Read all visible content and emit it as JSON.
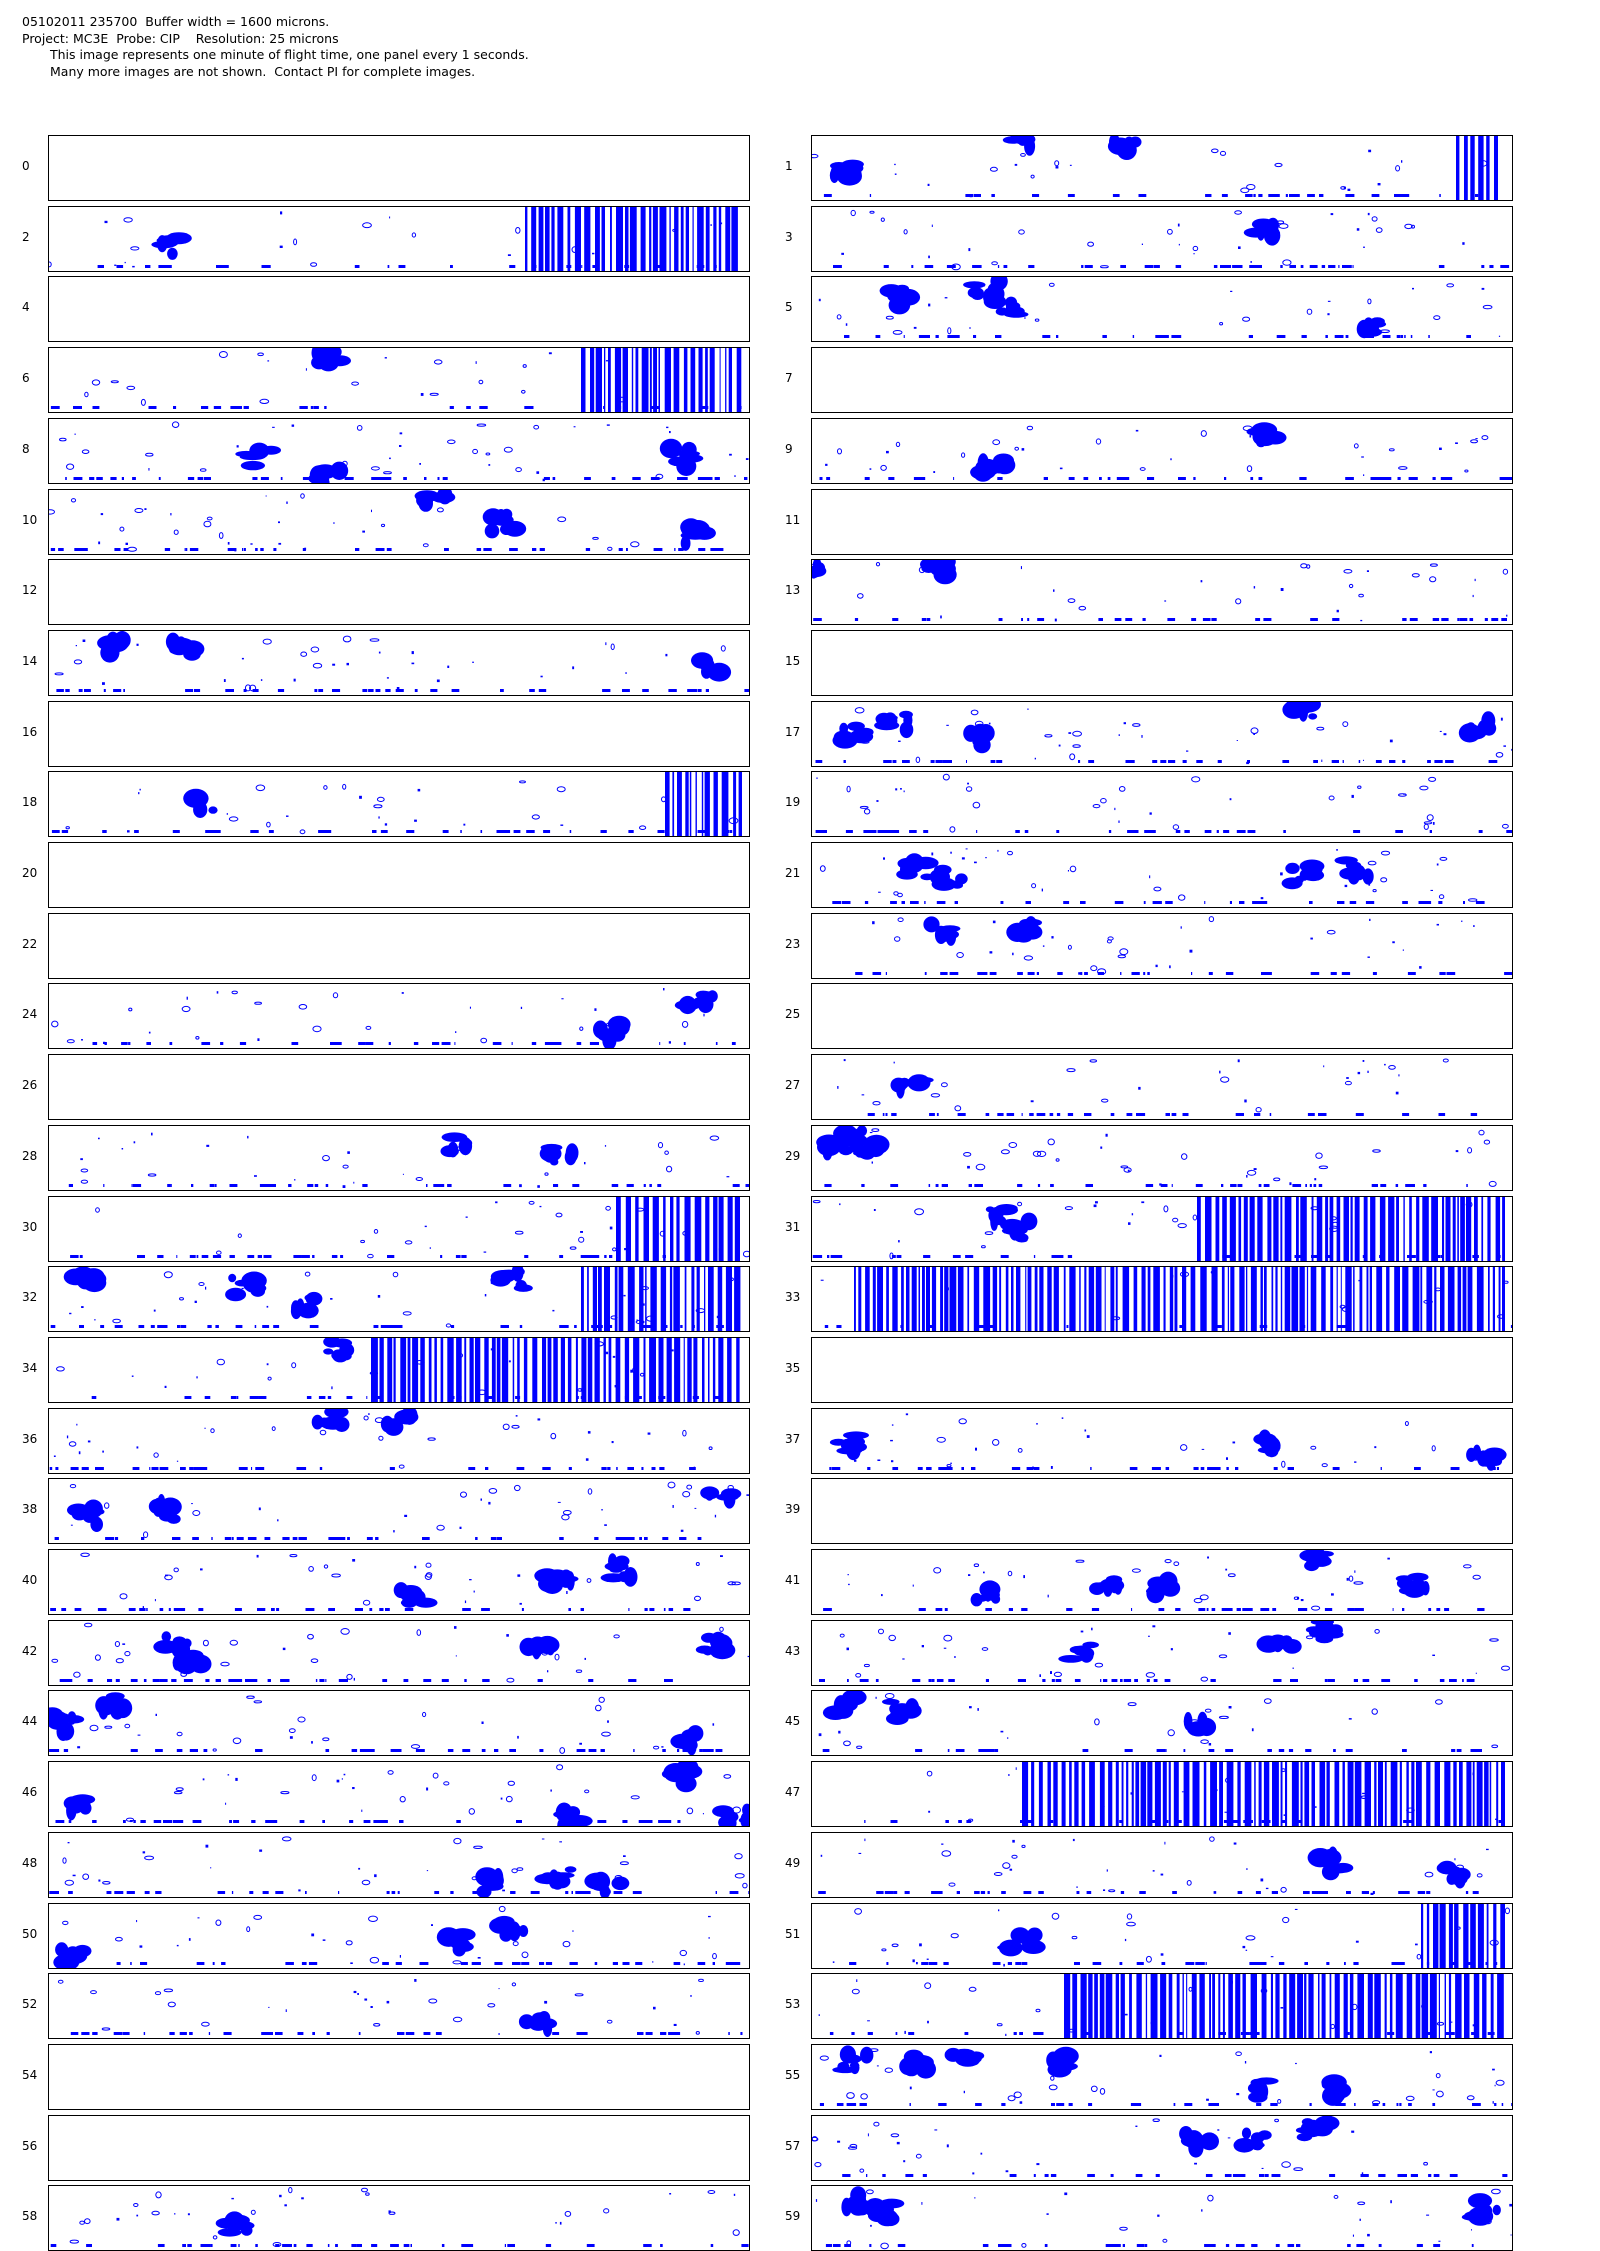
{
  "header": {
    "line1": "05102011 235700  Buffer width = 1600 microns.",
    "line2": "Project: MC3E  Probe: CIP    Resolution: 25 microns",
    "line3": "This image represents one minute of flight time, one panel every 1 seconds.",
    "line4": "Many more images are not shown.  Contact PI for complete images."
  },
  "colors": {
    "particle": "#0000ff",
    "border": "#000000",
    "background": "#ffffff"
  },
  "panels": [
    {
      "label": "0",
      "density": 0,
      "blocks": [],
      "stripes": []
    },
    {
      "label": "1",
      "density": 26,
      "blocks": [
        [
          0.05,
          0.55
        ],
        [
          0.3,
          0.05
        ],
        [
          0.45,
          0.1
        ]
      ],
      "stripes": [
        [
          0.92,
          0.98
        ]
      ]
    },
    {
      "label": "2",
      "density": 22,
      "blocks": [
        [
          0.18,
          0.6
        ]
      ],
      "stripes": [
        [
          0.68,
          0.99
        ]
      ]
    },
    {
      "label": "3",
      "density": 34,
      "blocks": [
        [
          0.65,
          0.4
        ]
      ],
      "stripes": []
    },
    {
      "label": "4",
      "density": 0,
      "blocks": [],
      "stripes": []
    },
    {
      "label": "5",
      "density": 30,
      "blocks": [
        [
          0.12,
          0.3
        ],
        [
          0.25,
          0.2
        ],
        [
          0.28,
          0.5
        ],
        [
          0.8,
          0.75
        ]
      ],
      "stripes": []
    },
    {
      "label": "6",
      "density": 24,
      "blocks": [
        [
          0.4,
          0.15
        ]
      ],
      "stripes": [
        [
          0.76,
          0.99
        ]
      ]
    },
    {
      "label": "7",
      "density": 0,
      "blocks": [],
      "stripes": []
    },
    {
      "label": "8",
      "density": 38,
      "blocks": [
        [
          0.3,
          0.6
        ],
        [
          0.9,
          0.6
        ],
        [
          0.4,
          0.9
        ]
      ],
      "stripes": []
    },
    {
      "label": "9",
      "density": 32,
      "blocks": [
        [
          0.26,
          0.75
        ],
        [
          0.65,
          0.3
        ]
      ],
      "stripes": []
    },
    {
      "label": "10",
      "density": 38,
      "blocks": [
        [
          0.55,
          0.2
        ],
        [
          0.65,
          0.5
        ],
        [
          0.92,
          0.7
        ]
      ],
      "stripes": []
    },
    {
      "label": "11",
      "density": 0,
      "blocks": [],
      "stripes": []
    },
    {
      "label": "12",
      "density": 0,
      "blocks": [],
      "stripes": []
    },
    {
      "label": "13",
      "density": 30,
      "blocks": [
        [
          0.01,
          0.1
        ],
        [
          0.18,
          0.15
        ]
      ],
      "stripes": []
    },
    {
      "label": "14",
      "density": 36,
      "blocks": [
        [
          0.1,
          0.2
        ],
        [
          0.19,
          0.25
        ],
        [
          0.95,
          0.6
        ]
      ],
      "stripes": []
    },
    {
      "label": "15",
      "density": 0,
      "blocks": [],
      "stripes": []
    },
    {
      "label": "16",
      "density": 0,
      "blocks": [],
      "stripes": []
    },
    {
      "label": "17",
      "density": 36,
      "blocks": [
        [
          0.06,
          0.5
        ],
        [
          0.12,
          0.3
        ],
        [
          0.23,
          0.55
        ],
        [
          0.7,
          0.15
        ],
        [
          0.95,
          0.4
        ]
      ],
      "stripes": []
    },
    {
      "label": "18",
      "density": 30,
      "blocks": [
        [
          0.22,
          0.5
        ]
      ],
      "stripes": [
        [
          0.88,
          0.99
        ]
      ]
    },
    {
      "label": "19",
      "density": 34,
      "blocks": [],
      "stripes": []
    },
    {
      "label": "20",
      "density": 0,
      "blocks": [],
      "stripes": []
    },
    {
      "label": "21",
      "density": 34,
      "blocks": [
        [
          0.15,
          0.4
        ],
        [
          0.2,
          0.55
        ],
        [
          0.7,
          0.5
        ],
        [
          0.78,
          0.4
        ]
      ],
      "stripes": []
    },
    {
      "label": "22",
      "density": 0,
      "blocks": [],
      "stripes": []
    },
    {
      "label": "23",
      "density": 34,
      "blocks": [
        [
          0.18,
          0.3
        ],
        [
          0.3,
          0.25
        ]
      ],
      "stripes": []
    },
    {
      "label": "24",
      "density": 30,
      "blocks": [
        [
          0.93,
          0.25
        ],
        [
          0.8,
          0.75
        ]
      ],
      "stripes": []
    },
    {
      "label": "25",
      "density": 0,
      "blocks": [],
      "stripes": []
    },
    {
      "label": "26",
      "density": 0,
      "blocks": [],
      "stripes": []
    },
    {
      "label": "27",
      "density": 30,
      "blocks": [
        [
          0.14,
          0.5
        ]
      ],
      "stripes": []
    },
    {
      "label": "28",
      "density": 30,
      "blocks": [
        [
          0.73,
          0.45
        ],
        [
          0.58,
          0.3
        ]
      ],
      "stripes": []
    },
    {
      "label": "29",
      "density": 34,
      "blocks": [
        [
          0.03,
          0.35
        ],
        [
          0.06,
          0.15
        ],
        [
          0.08,
          0.3
        ]
      ],
      "stripes": []
    },
    {
      "label": "30",
      "density": 28,
      "blocks": [],
      "stripes": [
        [
          0.81,
          0.99
        ]
      ]
    },
    {
      "label": "31",
      "density": 28,
      "blocks": [
        [
          0.27,
          0.3
        ],
        [
          0.3,
          0.5
        ]
      ],
      "stripes": [
        [
          0.55,
          0.99
        ]
      ]
    },
    {
      "label": "32",
      "density": 36,
      "blocks": [
        [
          0.05,
          0.15
        ],
        [
          0.28,
          0.3
        ],
        [
          0.37,
          0.6
        ],
        [
          0.66,
          0.2
        ]
      ],
      "stripes": [
        [
          0.76,
          0.99
        ]
      ]
    },
    {
      "label": "33",
      "density": 14,
      "blocks": [],
      "stripes": [
        [
          0.06,
          0.99
        ]
      ]
    },
    {
      "label": "34",
      "density": 26,
      "blocks": [
        [
          0.41,
          0.2
        ]
      ],
      "stripes": [
        [
          0.46,
          0.99
        ]
      ]
    },
    {
      "label": "35",
      "density": 0,
      "blocks": [],
      "stripes": []
    },
    {
      "label": "36",
      "density": 32,
      "blocks": [
        [
          0.4,
          0.15
        ],
        [
          0.5,
          0.2
        ]
      ],
      "stripes": []
    },
    {
      "label": "37",
      "density": 32,
      "blocks": [
        [
          0.05,
          0.55
        ],
        [
          0.66,
          0.55
        ],
        [
          0.96,
          0.75
        ]
      ],
      "stripes": []
    },
    {
      "label": "38",
      "density": 34,
      "blocks": [
        [
          0.05,
          0.6
        ],
        [
          0.16,
          0.5
        ],
        [
          0.96,
          0.2
        ]
      ],
      "stripes": []
    },
    {
      "label": "39",
      "density": 0,
      "blocks": [],
      "stripes": []
    },
    {
      "label": "40",
      "density": 34,
      "blocks": [
        [
          0.52,
          0.7
        ],
        [
          0.73,
          0.5
        ],
        [
          0.82,
          0.3
        ]
      ],
      "stripes": []
    },
    {
      "label": "41",
      "density": 34,
      "blocks": [
        [
          0.25,
          0.7
        ],
        [
          0.42,
          0.6
        ],
        [
          0.5,
          0.6
        ],
        [
          0.72,
          0.15
        ],
        [
          0.86,
          0.55
        ]
      ],
      "stripes": []
    },
    {
      "label": "42",
      "density": 34,
      "blocks": [
        [
          0.18,
          0.3
        ],
        [
          0.2,
          0.65
        ],
        [
          0.7,
          0.5
        ],
        [
          0.95,
          0.35
        ]
      ],
      "stripes": []
    },
    {
      "label": "43",
      "density": 34,
      "blocks": [
        [
          0.38,
          0.5
        ],
        [
          0.67,
          0.3
        ],
        [
          0.73,
          0.15
        ]
      ],
      "stripes": []
    },
    {
      "label": "44",
      "density": 32,
      "blocks": [
        [
          0.02,
          0.5
        ],
        [
          0.09,
          0.2
        ],
        [
          0.91,
          0.75
        ]
      ],
      "stripes": []
    },
    {
      "label": "45",
      "density": 28,
      "blocks": [
        [
          0.05,
          0.2
        ],
        [
          0.13,
          0.3
        ],
        [
          0.55,
          0.5
        ]
      ],
      "stripes": []
    },
    {
      "label": "46",
      "density": 34,
      "blocks": [
        [
          0.05,
          0.7
        ],
        [
          0.74,
          0.9
        ],
        [
          0.9,
          0.2
        ],
        [
          0.98,
          0.85
        ]
      ],
      "stripes": []
    },
    {
      "label": "47",
      "density": 22,
      "blocks": [],
      "stripes": [
        [
          0.3,
          0.99
        ]
      ]
    },
    {
      "label": "48",
      "density": 34,
      "blocks": [
        [
          0.63,
          0.8
        ],
        [
          0.73,
          0.7
        ],
        [
          0.8,
          0.8
        ]
      ],
      "stripes": []
    },
    {
      "label": "49",
      "density": 34,
      "blocks": [
        [
          0.74,
          0.5
        ],
        [
          0.92,
          0.65
        ]
      ],
      "stripes": []
    },
    {
      "label": "50",
      "density": 34,
      "blocks": [
        [
          0.03,
          0.8
        ],
        [
          0.58,
          0.6
        ],
        [
          0.66,
          0.4
        ]
      ],
      "stripes": []
    },
    {
      "label": "51",
      "density": 30,
      "blocks": [
        [
          0.3,
          0.6
        ]
      ],
      "stripes": [
        [
          0.87,
          0.99
        ]
      ]
    },
    {
      "label": "52",
      "density": 30,
      "blocks": [
        [
          0.7,
          0.75
        ]
      ],
      "stripes": []
    },
    {
      "label": "53",
      "density": 24,
      "blocks": [],
      "stripes": [
        [
          0.36,
          0.99
        ]
      ]
    },
    {
      "label": "54",
      "density": 0,
      "blocks": [],
      "stripes": []
    },
    {
      "label": "55",
      "density": 34,
      "blocks": [
        [
          0.06,
          0.25
        ],
        [
          0.15,
          0.25
        ],
        [
          0.22,
          0.25
        ],
        [
          0.35,
          0.3
        ],
        [
          0.65,
          0.7
        ],
        [
          0.75,
          0.7
        ]
      ],
      "stripes": []
    },
    {
      "label": "56",
      "density": 0,
      "blocks": [],
      "stripes": []
    },
    {
      "label": "57",
      "density": 32,
      "blocks": [
        [
          0.55,
          0.4
        ],
        [
          0.63,
          0.4
        ],
        [
          0.72,
          0.2
        ]
      ],
      "stripes": []
    },
    {
      "label": "58",
      "density": 30,
      "blocks": [
        [
          0.27,
          0.65
        ]
      ],
      "stripes": []
    },
    {
      "label": "59",
      "density": 28,
      "blocks": [
        [
          0.1,
          0.4
        ],
        [
          0.06,
          0.25
        ],
        [
          0.96,
          0.35
        ]
      ],
      "stripes": []
    }
  ]
}
